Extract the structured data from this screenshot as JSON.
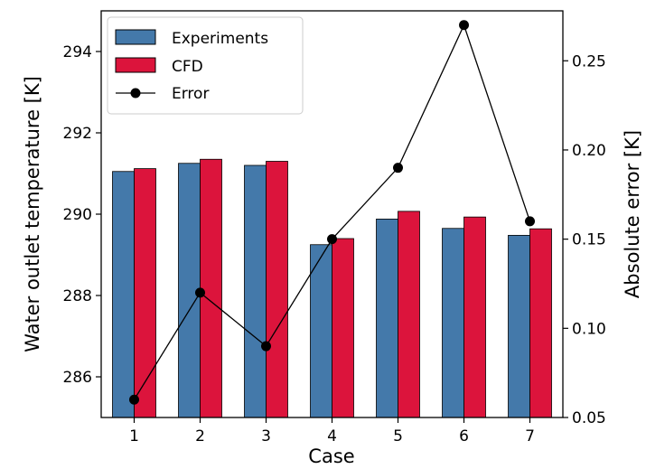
{
  "chart_data": {
    "type": "bar",
    "categories": [
      "1",
      "2",
      "3",
      "4",
      "5",
      "6",
      "7"
    ],
    "series": [
      {
        "name": "Experiments",
        "axis": "left",
        "values": [
          291.05,
          291.25,
          291.2,
          289.25,
          289.88,
          289.65,
          289.48
        ],
        "color": "#4479aa"
      },
      {
        "name": "CFD",
        "axis": "left",
        "values": [
          291.12,
          291.35,
          291.3,
          289.4,
          290.07,
          289.93,
          289.64
        ],
        "color": "#dc143c"
      },
      {
        "name": "Error",
        "axis": "right",
        "kind": "line",
        "values": [
          0.06,
          0.12,
          0.09,
          0.15,
          0.19,
          0.27,
          0.16
        ],
        "color": "#000000"
      }
    ],
    "xlabel": "Case",
    "ylabel": "Water outlet temperature [K]",
    "y2label": "Absolute error [K]",
    "ylim": [
      285,
      295
    ],
    "y2lim": [
      0.05,
      0.278
    ],
    "yticks": [
      "286",
      "288",
      "290",
      "292",
      "294"
    ],
    "y2ticks": [
      "0.05",
      "0.10",
      "0.15",
      "0.20",
      "0.25"
    ],
    "legend": "top-left",
    "grid": false
  }
}
